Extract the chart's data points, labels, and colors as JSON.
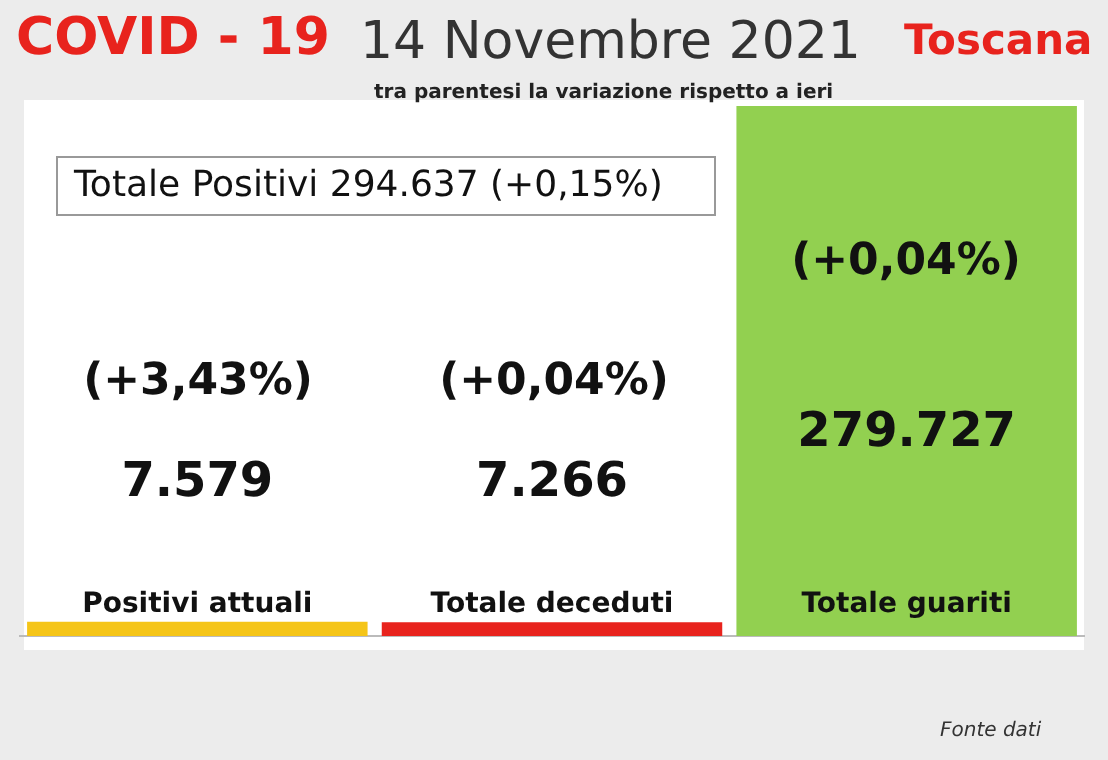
{
  "chart_data": {
    "type": "bar",
    "title": "14 Novembre 2021",
    "subtitle": "tra parentesi la variazione rispetto a ieri",
    "categories": [
      "Positivi attuali",
      "Totale deceduti",
      "Totale guariti"
    ],
    "values": [
      7579,
      7266,
      279727
    ],
    "colors": [
      "#f5c518",
      "#e8231d",
      "#92d050"
    ],
    "value_labels": [
      "7.579",
      "7.266",
      "279.727"
    ],
    "annotations": [
      "COVID - 19",
      "Toscana",
      "Totale Positivi 294.637 (+0,15%)",
      "(+3,43%)",
      "(+0,04%)",
      "(+0,04%)",
      "Fonte dati"
    ],
    "grid": false,
    "legend": false
  }
}
